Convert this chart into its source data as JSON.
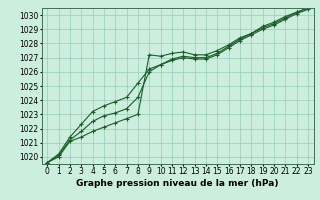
{
  "xlabel": "Graphe pression niveau de la mer (hPa)",
  "ylabel": "",
  "bg_color": "#cceedd",
  "grid_color": "#99ccbb",
  "line_color": "#1a5c2a",
  "x": [
    0,
    1,
    2,
    3,
    4,
    5,
    6,
    7,
    8,
    9,
    10,
    11,
    12,
    13,
    14,
    15,
    16,
    17,
    18,
    19,
    20,
    21,
    22,
    23
  ],
  "line1": [
    1019.6,
    1020.0,
    1021.1,
    1021.4,
    1021.8,
    1022.1,
    1022.4,
    1022.7,
    1023.0,
    1027.2,
    1027.1,
    1027.3,
    1027.4,
    1027.2,
    1027.2,
    1027.5,
    1027.9,
    1028.4,
    1028.7,
    1029.2,
    1029.5,
    1029.9,
    1030.2,
    1030.5
  ],
  "line2": [
    1019.6,
    1020.1,
    1021.2,
    1021.8,
    1022.5,
    1022.9,
    1023.1,
    1023.4,
    1024.2,
    1026.0,
    1026.5,
    1026.9,
    1027.1,
    1027.0,
    1027.0,
    1027.3,
    1027.8,
    1028.3,
    1028.7,
    1029.1,
    1029.4,
    1029.8,
    1030.2,
    1030.5
  ],
  "line3": [
    1019.6,
    1020.2,
    1021.4,
    1022.3,
    1023.2,
    1023.6,
    1023.9,
    1024.2,
    1025.2,
    1026.2,
    1026.5,
    1026.8,
    1027.0,
    1026.9,
    1026.9,
    1027.2,
    1027.7,
    1028.2,
    1028.6,
    1029.0,
    1029.3,
    1029.7,
    1030.1,
    1030.4
  ],
  "ylim": [
    1019.5,
    1030.5
  ],
  "yticks": [
    1020,
    1021,
    1022,
    1023,
    1024,
    1025,
    1026,
    1027,
    1028,
    1029,
    1030
  ],
  "xticks": [
    0,
    1,
    2,
    3,
    4,
    5,
    6,
    7,
    8,
    9,
    10,
    11,
    12,
    13,
    14,
    15,
    16,
    17,
    18,
    19,
    20,
    21,
    22,
    23
  ],
  "marker": "+",
  "markersize": 3,
  "linewidth": 0.8,
  "xlabel_fontsize": 6.5,
  "tick_fontsize": 5.5
}
